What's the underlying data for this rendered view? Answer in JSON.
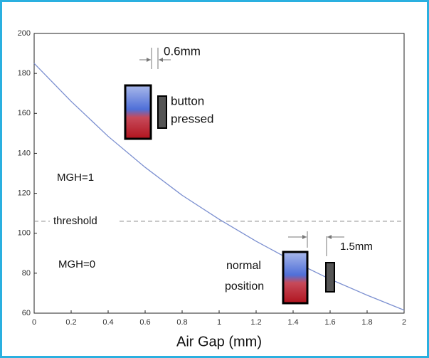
{
  "chart_data": {
    "type": "line",
    "xlabel": "Air Gap (mm)",
    "x": [
      0,
      0.2,
      0.4,
      0.6,
      0.8,
      1.0,
      1.2,
      1.4,
      1.6,
      1.8,
      2.0
    ],
    "values": [
      185,
      166,
      148.5,
      133,
      119,
      107,
      96,
      86,
      77,
      69,
      61.5
    ],
    "color": "#7b8fd0",
    "xlim": [
      0,
      2
    ],
    "xticks": [
      0,
      0.2,
      0.4,
      0.6,
      0.8,
      1,
      1.2,
      1.4,
      1.6,
      1.8,
      2
    ],
    "ylim": [
      60,
      200
    ],
    "yticks": [
      60,
      80,
      100,
      120,
      140,
      160,
      180,
      200
    ],
    "threshold": {
      "label": "threshold",
      "value": 106
    },
    "annotations": {
      "gap_pressed": "0.6mm",
      "pressed_line1": "button",
      "pressed_line2": "pressed",
      "mgh1": "MGH=1",
      "mgh0": "MGH=0",
      "normal_line1": "normal",
      "normal_line2": "position",
      "gap_normal": "1.5mm"
    }
  }
}
